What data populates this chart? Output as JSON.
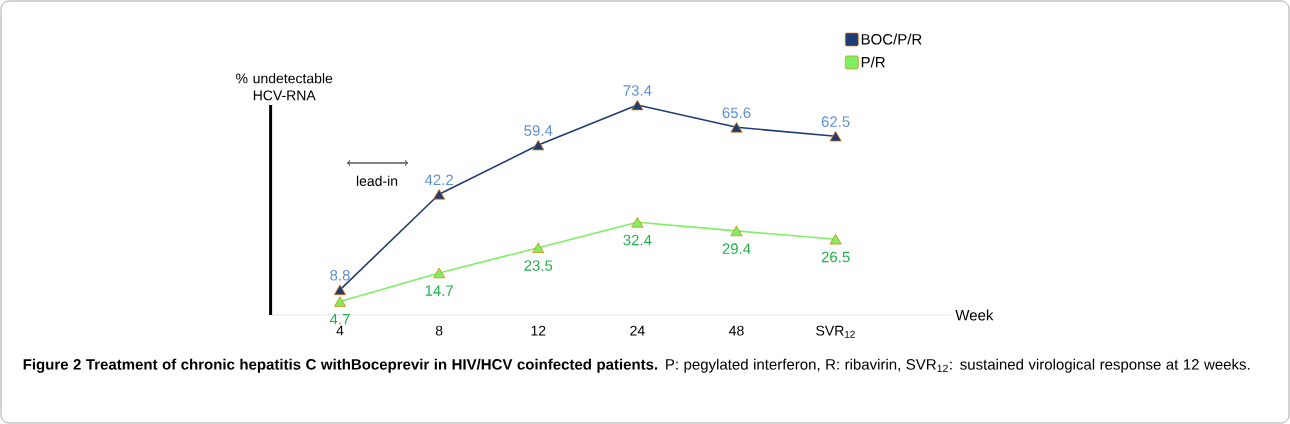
{
  "chart_data": {
    "type": "line",
    "ylabel": "% undetectable HCV-RNA",
    "xlabel": "Week",
    "categories": [
      "4",
      "8",
      "12",
      "24",
      "48",
      "SVR$_{12}$"
    ],
    "series": [
      {
        "name": "BOC/P/R",
        "color": "#1f3d73",
        "values": [
          8.8,
          42.2,
          59.4,
          73.4,
          65.6,
          62.5
        ]
      },
      {
        "name": "P/R",
        "color": "#7cf060",
        "values": [
          4.7,
          14.7,
          23.5,
          32.4,
          29.4,
          26.5
        ]
      }
    ],
    "data_labels": true,
    "marker": "triangle",
    "legend": "top right",
    "tick_labels": "x",
    "annotations": [
      "lead-in",
      "**Figure 2 Treatment of chronic hepatitis C withBoceprevir in HIV/HCV coinfected patients.** P: pegylated interferon, R: ribavirin, SVR$_{12}$: sustained virological response at 12 weeks."
    ]
  }
}
